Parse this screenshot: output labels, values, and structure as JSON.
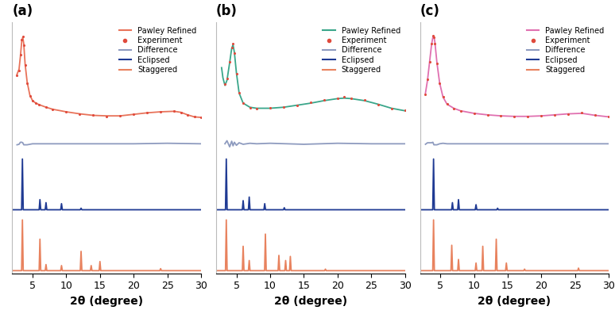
{
  "chart_data": [
    {
      "type": "line",
      "title": "(a)",
      "x_label": "2θ (degree)",
      "xlim": [
        2,
        30
      ],
      "xticks": [
        5,
        10,
        15,
        20,
        25,
        30
      ],
      "ylim": [
        -0.05,
        4.9
      ],
      "tick_labels": "x",
      "legend": "upper right",
      "grid": false,
      "series": [
        {
          "name": "Pawley Refined",
          "type": "line",
          "color": "#e8735a",
          "line_style": "solid",
          "x": [
            2.7,
            3.0,
            3.2,
            3.4,
            3.55,
            3.7,
            3.9,
            4.2,
            4.6,
            5.0,
            5.5,
            6,
            7,
            8,
            10,
            12,
            14,
            16,
            18,
            20,
            22,
            24,
            26,
            27,
            28,
            29,
            30
          ],
          "values": [
            3.87,
            3.97,
            4.22,
            4.52,
            4.6,
            4.47,
            4.07,
            3.72,
            3.46,
            3.35,
            3.3,
            3.27,
            3.22,
            3.18,
            3.13,
            3.09,
            3.06,
            3.05,
            3.05,
            3.08,
            3.11,
            3.13,
            3.14,
            3.12,
            3.07,
            3.03,
            3.02
          ]
        },
        {
          "name": "Experiment",
          "type": "scatter",
          "color": "#e04a3c",
          "marker": "o",
          "x": [
            2.7,
            3.0,
            3.2,
            3.4,
            3.55,
            3.7,
            3.9,
            4.2,
            4.6,
            5.0,
            5.5,
            6,
            7,
            8,
            10,
            12,
            14,
            16,
            18,
            20,
            22,
            24,
            26,
            27,
            28,
            29,
            30
          ],
          "values": [
            3.85,
            3.95,
            4.25,
            4.55,
            4.62,
            4.45,
            4.05,
            3.7,
            3.45,
            3.35,
            3.3,
            3.27,
            3.22,
            3.18,
            3.13,
            3.09,
            3.06,
            3.04,
            3.05,
            3.08,
            3.11,
            3.13,
            3.15,
            3.12,
            3.06,
            3.03,
            3.02
          ]
        },
        {
          "name": "Difference",
          "type": "line",
          "color": "#8e9bbf",
          "line_style": "solid",
          "x": [
            2.7,
            3.0,
            3.2,
            3.4,
            3.55,
            3.7,
            3.9,
            4.2,
            4.6,
            5.0,
            6,
            8,
            10,
            15,
            20,
            25,
            30
          ],
          "values": [
            2.48,
            2.49,
            2.53,
            2.53,
            2.52,
            2.48,
            2.48,
            2.48,
            2.49,
            2.5,
            2.5,
            2.5,
            2.5,
            2.5,
            2.5,
            2.51,
            2.5
          ]
        },
        {
          "name": "Eclipsed",
          "type": "line",
          "color": "#1f3a93",
          "line_style": "solid",
          "x": [
            2,
            3.38,
            3.5,
            3.62,
            5.98,
            6.1,
            6.22,
            6.88,
            7.0,
            7.12,
            9.18,
            9.3,
            9.42,
            12.08,
            12.2,
            12.32,
            30
          ],
          "values": [
            1.2,
            1.2,
            2.2,
            1.2,
            1.2,
            1.4,
            1.2,
            1.2,
            1.34,
            1.2,
            1.2,
            1.32,
            1.2,
            1.2,
            1.23,
            1.2,
            1.2
          ]
        },
        {
          "name": "Staggered",
          "type": "line",
          "color": "#e8825e",
          "line_style": "solid",
          "x": [
            2,
            3.38,
            3.5,
            3.62,
            5.98,
            6.1,
            6.22,
            6.88,
            7.0,
            7.12,
            9.18,
            9.3,
            9.42,
            12.08,
            12.2,
            12.32,
            13.58,
            13.7,
            13.82,
            14.88,
            15.0,
            15.12,
            23.88,
            24.0,
            24.12,
            30
          ],
          "values": [
            0,
            0,
            1.0,
            0,
            0,
            0.62,
            0,
            0,
            0.12,
            0,
            0,
            0.1,
            0,
            0,
            0.38,
            0,
            0,
            0.1,
            0,
            0,
            0.18,
            0,
            0,
            0.04,
            0,
            0
          ]
        }
      ]
    },
    {
      "type": "line",
      "title": "(b)",
      "x_label": "2θ (degree)",
      "xlim": [
        2,
        30
      ],
      "xticks": [
        5,
        10,
        15,
        20,
        25,
        30
      ],
      "ylim": [
        -0.05,
        4.9
      ],
      "tick_labels": "x",
      "legend": "upper right",
      "grid": false,
      "series": [
        {
          "name": "Pawley Refined",
          "type": "line",
          "color": "#3aa68a",
          "line_style": "solid",
          "x": [
            2.8,
            3.0,
            3.3,
            3.6,
            4.0,
            4.3,
            4.5,
            4.7,
            5.0,
            5.4,
            6,
            7,
            8,
            10,
            12,
            14,
            16,
            18,
            20,
            21,
            22,
            24,
            26,
            28,
            30
          ],
          "values": [
            4.0,
            3.8,
            3.65,
            3.75,
            4.1,
            4.38,
            4.45,
            4.3,
            3.9,
            3.5,
            3.3,
            3.22,
            3.2,
            3.2,
            3.22,
            3.26,
            3.3,
            3.35,
            3.39,
            3.4,
            3.39,
            3.35,
            3.28,
            3.2,
            3.15
          ]
        },
        {
          "name": "Experiment",
          "type": "scatter",
          "color": "#e04a3c",
          "marker": "o",
          "x": [
            3.3,
            3.6,
            4.0,
            4.3,
            4.5,
            4.7,
            5.0,
            5.4,
            6,
            7,
            8,
            10,
            12,
            14,
            16,
            18,
            20,
            21,
            22,
            24,
            26,
            28,
            30
          ],
          "values": [
            3.68,
            3.78,
            4.12,
            4.4,
            4.47,
            4.28,
            3.88,
            3.5,
            3.3,
            3.21,
            3.2,
            3.21,
            3.23,
            3.26,
            3.31,
            3.36,
            3.4,
            3.42,
            3.4,
            3.36,
            3.27,
            3.2,
            3.16
          ]
        },
        {
          "name": "Difference",
          "type": "line",
          "color": "#8e9bbf",
          "line_style": "solid",
          "x": [
            3.3,
            3.6,
            4.0,
            4.3,
            4.5,
            4.7,
            5.0,
            5.4,
            6,
            7,
            8,
            10,
            15,
            20,
            25,
            30
          ],
          "values": [
            2.5,
            2.56,
            2.44,
            2.55,
            2.46,
            2.53,
            2.47,
            2.52,
            2.49,
            2.51,
            2.5,
            2.51,
            2.49,
            2.51,
            2.5,
            2.5
          ]
        },
        {
          "name": "Eclipsed",
          "type": "line",
          "color": "#1f3a93",
          "line_style": "solid",
          "x": [
            2,
            3.38,
            3.5,
            3.62,
            5.88,
            6.0,
            6.12,
            6.78,
            6.9,
            7.02,
            9.08,
            9.2,
            9.32,
            11.98,
            12.1,
            12.22,
            30
          ],
          "values": [
            1.2,
            1.2,
            2.2,
            1.2,
            1.2,
            1.38,
            1.2,
            1.2,
            1.45,
            1.2,
            1.2,
            1.32,
            1.2,
            1.2,
            1.24,
            1.2,
            1.2
          ]
        },
        {
          "name": "Staggered",
          "type": "line",
          "color": "#e8825e",
          "line_style": "solid",
          "x": [
            2,
            3.38,
            3.5,
            3.62,
            5.88,
            6.0,
            6.12,
            6.78,
            6.9,
            7.02,
            9.18,
            9.3,
            9.42,
            11.18,
            11.3,
            11.42,
            12.18,
            12.3,
            12.42,
            12.88,
            13.0,
            13.12,
            18.08,
            18.2,
            18.32,
            30
          ],
          "values": [
            0,
            0,
            1.0,
            0,
            0,
            0.48,
            0,
            0,
            0.2,
            0,
            0,
            0.72,
            0,
            0,
            0.3,
            0,
            0,
            0.2,
            0,
            0,
            0.28,
            0,
            0,
            0.03,
            0,
            0
          ]
        }
      ]
    },
    {
      "type": "line",
      "title": "(c)",
      "x_label": "2θ (degree)",
      "xlim": [
        2,
        30
      ],
      "xticks": [
        5,
        10,
        15,
        20,
        25,
        30
      ],
      "ylim": [
        -0.05,
        4.9
      ],
      "tick_labels": "x",
      "legend": "upper right",
      "grid": false,
      "series": [
        {
          "name": "Pawley Refined",
          "type": "line",
          "color": "#e070b0",
          "line_style": "solid",
          "x": [
            2.8,
            3.1,
            3.4,
            3.7,
            3.9,
            4.05,
            4.2,
            4.5,
            4.9,
            5.4,
            6,
            7,
            8,
            10,
            12,
            14,
            16,
            18,
            20,
            22,
            24,
            26,
            28,
            30
          ],
          "values": [
            3.5,
            3.75,
            4.1,
            4.45,
            4.6,
            4.62,
            4.5,
            4.1,
            3.7,
            3.42,
            3.28,
            3.2,
            3.15,
            3.1,
            3.07,
            3.05,
            3.04,
            3.04,
            3.05,
            3.07,
            3.09,
            3.1,
            3.06,
            3.03
          ]
        },
        {
          "name": "Experiment",
          "type": "scatter",
          "color": "#e04a3c",
          "marker": "o",
          "x": [
            2.8,
            3.1,
            3.4,
            3.7,
            3.9,
            4.05,
            4.2,
            4.5,
            4.9,
            5.4,
            6,
            7,
            8,
            10,
            12,
            14,
            16,
            18,
            20,
            22,
            24,
            26,
            28,
            30
          ],
          "values": [
            3.48,
            3.77,
            4.12,
            4.47,
            4.63,
            4.6,
            4.48,
            4.08,
            3.7,
            3.43,
            3.28,
            3.2,
            3.15,
            3.1,
            3.07,
            3.05,
            3.04,
            3.04,
            3.05,
            3.07,
            3.09,
            3.11,
            3.06,
            3.03
          ]
        },
        {
          "name": "Difference",
          "type": "line",
          "color": "#8e9bbf",
          "line_style": "solid",
          "x": [
            2.8,
            3.1,
            3.4,
            3.7,
            3.9,
            4.05,
            4.2,
            4.5,
            4.9,
            5.4,
            6,
            8,
            10,
            15,
            20,
            25,
            30
          ],
          "values": [
            2.49,
            2.52,
            2.52,
            2.52,
            2.53,
            2.48,
            2.48,
            2.48,
            2.5,
            2.51,
            2.5,
            2.5,
            2.5,
            2.5,
            2.5,
            2.5,
            2.5
          ]
        },
        {
          "name": "Eclipsed",
          "type": "line",
          "color": "#1f3a93",
          "line_style": "solid",
          "x": [
            2,
            3.88,
            4.0,
            4.12,
            6.68,
            6.8,
            6.92,
            7.58,
            7.7,
            7.82,
            10.18,
            10.3,
            10.42,
            13.38,
            13.5,
            13.62,
            30
          ],
          "values": [
            1.2,
            1.2,
            2.2,
            1.2,
            1.2,
            1.34,
            1.2,
            1.2,
            1.4,
            1.2,
            1.2,
            1.3,
            1.2,
            1.2,
            1.23,
            1.2,
            1.2
          ]
        },
        {
          "name": "Staggered",
          "type": "line",
          "color": "#e8825e",
          "line_style": "solid",
          "x": [
            2,
            3.88,
            4.0,
            4.12,
            6.58,
            6.7,
            6.82,
            7.58,
            7.7,
            7.82,
            10.18,
            10.3,
            10.42,
            11.18,
            11.3,
            11.42,
            13.18,
            13.3,
            13.42,
            14.68,
            14.8,
            14.92,
            17.38,
            17.5,
            17.62,
            25.38,
            25.5,
            25.62,
            30
          ],
          "values": [
            0,
            0,
            1.0,
            0,
            0,
            0.5,
            0,
            0,
            0.22,
            0,
            0,
            0.15,
            0,
            0,
            0.48,
            0,
            0,
            0.62,
            0,
            0,
            0.15,
            0,
            0,
            0.03,
            0,
            0,
            0.05,
            0,
            0
          ]
        }
      ]
    }
  ]
}
